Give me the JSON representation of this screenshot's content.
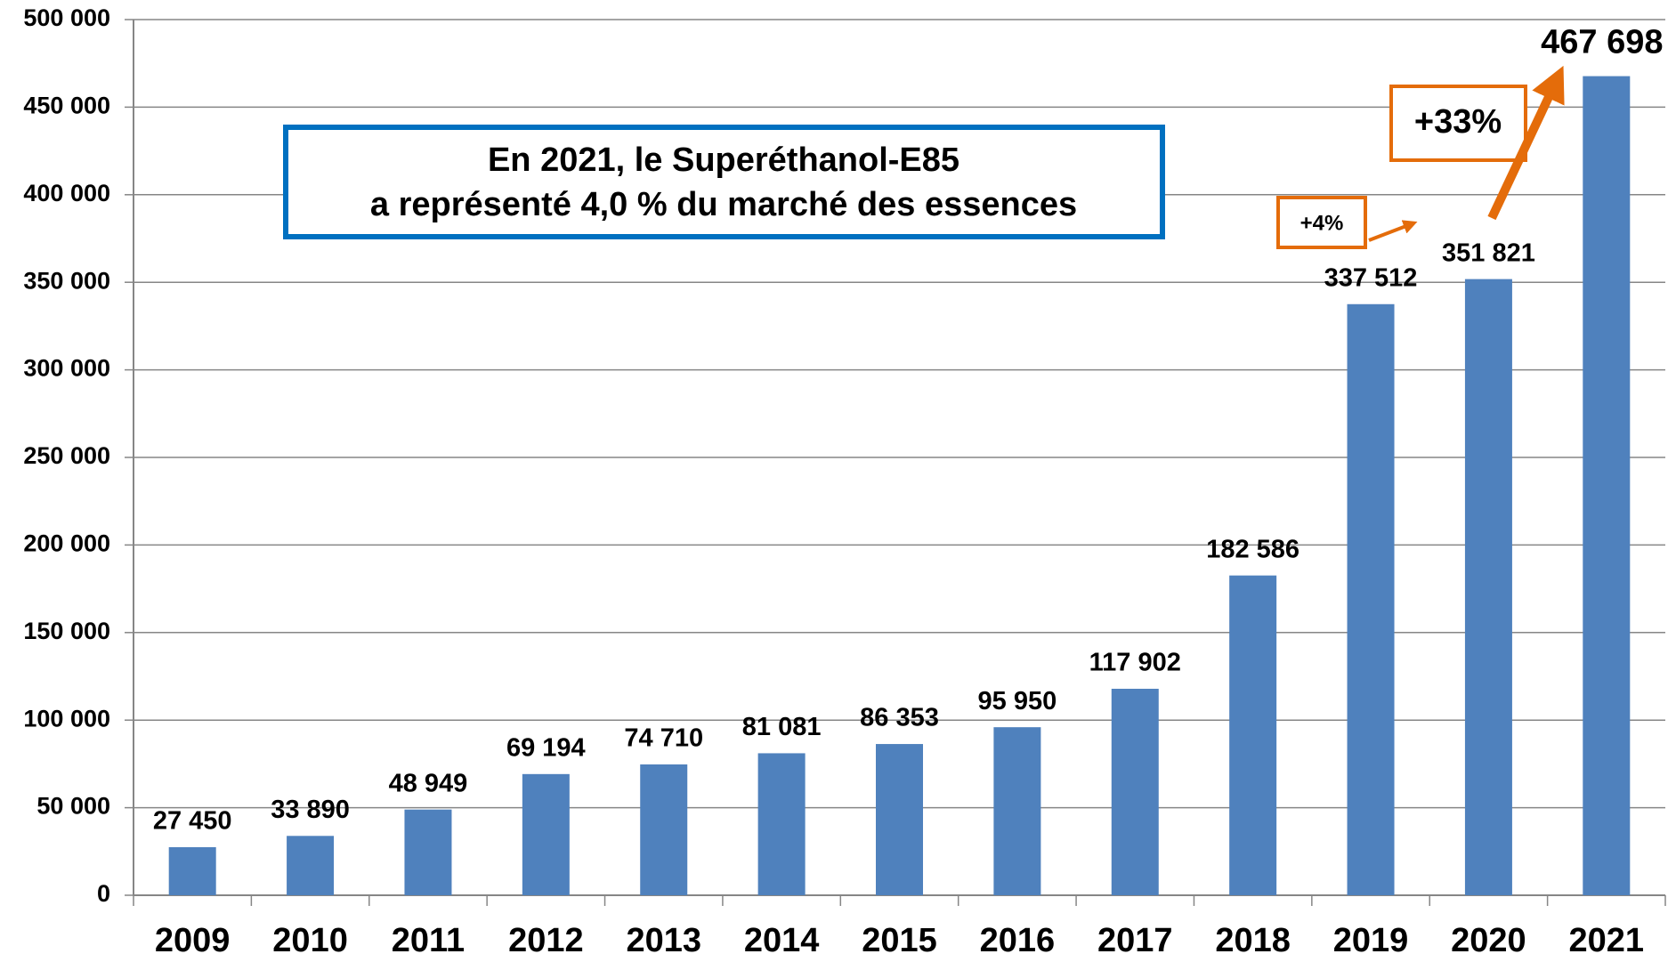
{
  "chart_data": {
    "type": "bar",
    "categories": [
      "2009",
      "2010",
      "2011",
      "2012",
      "2013",
      "2014",
      "2015",
      "2016",
      "2017",
      "2018",
      "2019",
      "2020",
      "2021"
    ],
    "values": [
      27450,
      33890,
      48949,
      69194,
      74710,
      81081,
      86353,
      95950,
      117902,
      182586,
      337512,
      351821,
      467698
    ],
    "value_labels": [
      "27 450",
      "33 890",
      "48 949",
      "69 194",
      "74 710",
      "81 081",
      "86 353",
      "95 950",
      "117 902",
      "182 586",
      "337 512",
      "351 821",
      "467 698"
    ],
    "color": "#4f81bd",
    "ylim": [
      0,
      500000
    ],
    "yticks": [
      0,
      {
        "value": 50000,
        "label": "50 000"
      },
      {
        "value": 100000,
        "label": "100 000"
      },
      {
        "value": 150000,
        "label": "150 000"
      },
      {
        "value": 200000,
        "label": "200 000"
      },
      {
        "value": 250000,
        "label": "250 000"
      },
      {
        "value": 300000,
        "label": "300 000"
      },
      {
        "value": 350000,
        "label": "350 000"
      },
      {
        "value": 400000,
        "label": "400 000"
      },
      {
        "value": 450000,
        "label": "450 000"
      },
      {
        "value": 500000,
        "label": "500 000"
      }
    ],
    "grid": true,
    "annotations": {
      "textbox": [
        "En 2021, le Superéthanol-E85",
        "a représenté 4,0 % du marché des essences"
      ],
      "growth_small": "+4%",
      "growth_large": "+33%"
    }
  }
}
